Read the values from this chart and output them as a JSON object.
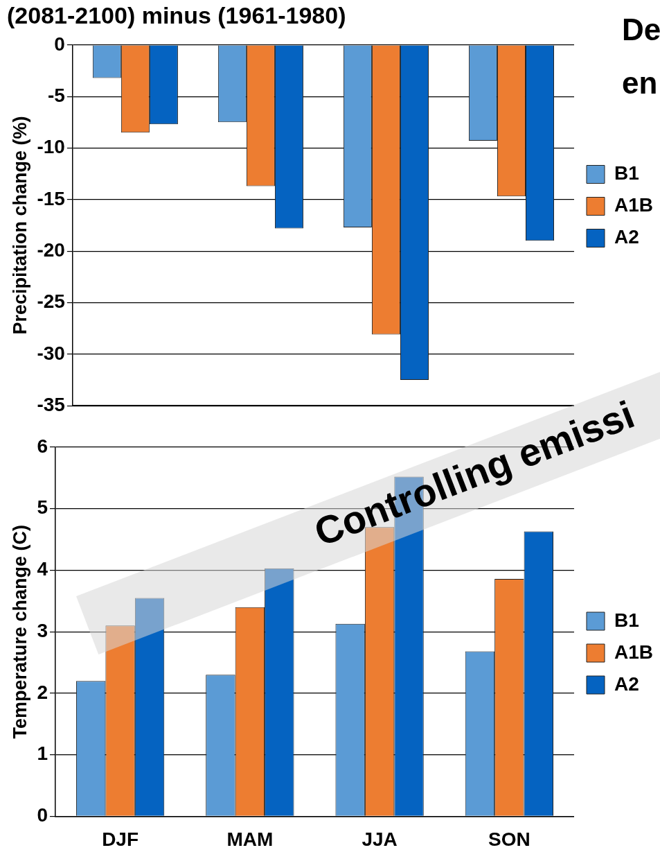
{
  "chart_data": [
    {
      "type": "bar",
      "title": "(2081-2100) minus (1961-1980)",
      "ylabel": "Precipitation change (%)",
      "categories": [
        null,
        null,
        null,
        null
      ],
      "tick_labels": "y",
      "series": [
        {
          "name": "B1",
          "color": "#5b9bd5",
          "values": [
            -3.2,
            -7.5,
            -17.7,
            -9.3
          ]
        },
        {
          "name": "A1B",
          "color": "#ed7d31",
          "values": [
            -8.5,
            -13.7,
            -28.1,
            -14.7
          ]
        },
        {
          "name": "A2",
          "color": "#0563c1",
          "values": [
            -7.7,
            -17.8,
            -32.5,
            -19.0
          ]
        }
      ],
      "ylim": [
        -35,
        0
      ],
      "yticks": [
        0,
        -5,
        -10,
        -15,
        -20,
        -25,
        -30,
        -35
      ],
      "grid": "y",
      "legend": "right",
      "annotations": [
        "De",
        "en"
      ]
    },
    {
      "type": "bar",
      "ylabel": "Temperature change (C)",
      "categories": [
        "DJF",
        "MAM",
        "JJA",
        "SON"
      ],
      "series": [
        {
          "name": "B1",
          "color": "#5b9bd5",
          "values": [
            2.2,
            2.3,
            3.13,
            2.68
          ]
        },
        {
          "name": "A1B",
          "color": "#ed7d31",
          "values": [
            3.1,
            3.4,
            4.7,
            3.86
          ]
        },
        {
          "name": "A2",
          "color": "#0563c1",
          "values": [
            3.55,
            4.03,
            5.52,
            4.63
          ]
        }
      ],
      "ylim": [
        0,
        6
      ],
      "yticks": [
        0,
        1,
        2,
        3,
        4,
        5,
        6
      ],
      "grid": "y",
      "legend": "right",
      "annotations": [
        "Controlling emissi"
      ]
    }
  ]
}
